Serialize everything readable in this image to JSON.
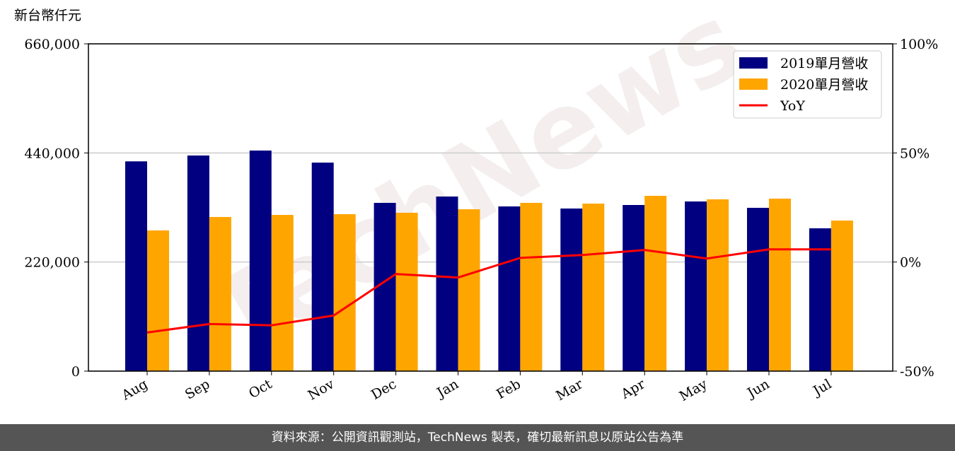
{
  "chart_data": {
    "type": "bar",
    "y_label": "新台幣仟元",
    "watermark": "TechNews",
    "categories": [
      "Aug",
      "Sep",
      "Oct",
      "Nov",
      "Dec",
      "Jan",
      "Feb",
      "Mar",
      "Apr",
      "May",
      "Jun",
      "Jul"
    ],
    "series": [
      {
        "name": "2019單月營收",
        "color": "#000080",
        "type": "bar",
        "values": [
          423000,
          434800,
          444800,
          420500,
          339300,
          352100,
          332100,
          327900,
          335000,
          342100,
          329300,
          288000
        ]
      },
      {
        "name": "2020單月營收",
        "color": "#ffa500",
        "type": "bar",
        "values": [
          283700,
          310800,
          315000,
          316500,
          319300,
          326400,
          339300,
          337800,
          353500,
          346400,
          347800,
          303600
        ]
      },
      {
        "name": "YoY",
        "color": "#ff0000",
        "type": "line",
        "axis": "y2",
        "values": [
          -32.3,
          -28.4,
          -29,
          -24.5,
          -5.5,
          -7.1,
          1.9,
          3.2,
          5.5,
          1.6,
          5.8,
          5.8
        ]
      }
    ],
    "ylim": [
      0,
      660000
    ],
    "yticks": [
      {
        "value": 0,
        "label": "0"
      },
      {
        "value": 220000,
        "label": "220,000"
      },
      {
        "value": 440000,
        "label": "440,000"
      },
      {
        "value": 660000,
        "label": "660,000"
      }
    ],
    "y2lim": [
      -50,
      100
    ],
    "y2ticks": [
      {
        "value": -50,
        "label": "-50%"
      },
      {
        "value": 0,
        "label": "0%"
      },
      {
        "value": 50,
        "label": "50%"
      },
      {
        "value": 100,
        "label": "100%"
      }
    ],
    "grid": true,
    "legend": "upper right"
  },
  "footer": "資料來源：公開資訊觀測站，TechNews 製表，確切最新訊息以原站公告為準"
}
